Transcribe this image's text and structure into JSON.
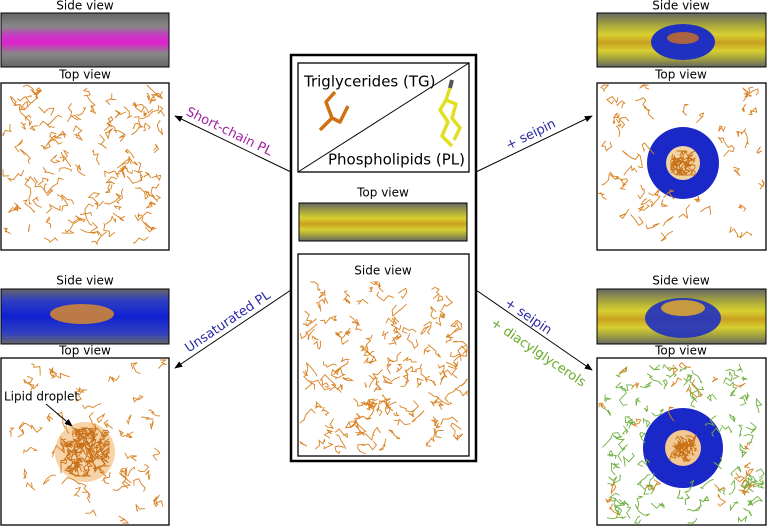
{
  "center": {
    "tg_label": "Triglycerides (TG)",
    "pl_label": "Phospholipids (PL)",
    "upper_view_label": "Top view",
    "lower_view_label": "Side view"
  },
  "panels": [
    {
      "side_label": "Side view",
      "top_label": "Top view",
      "arrow_labels": [
        "Short-chain PL"
      ]
    },
    {
      "side_label": "Side view",
      "top_label": "Top view",
      "arrow_labels": [
        "Unsaturated PL"
      ],
      "annotation": "Lipid droplet"
    },
    {
      "side_label": "Side view",
      "top_label": "Top view",
      "arrow_labels": [
        "+ seipin"
      ]
    },
    {
      "side_label": "Side view",
      "top_label": "Top view",
      "arrow_labels": [
        "+ seipin",
        "+ diacylglycerols"
      ]
    }
  ]
}
